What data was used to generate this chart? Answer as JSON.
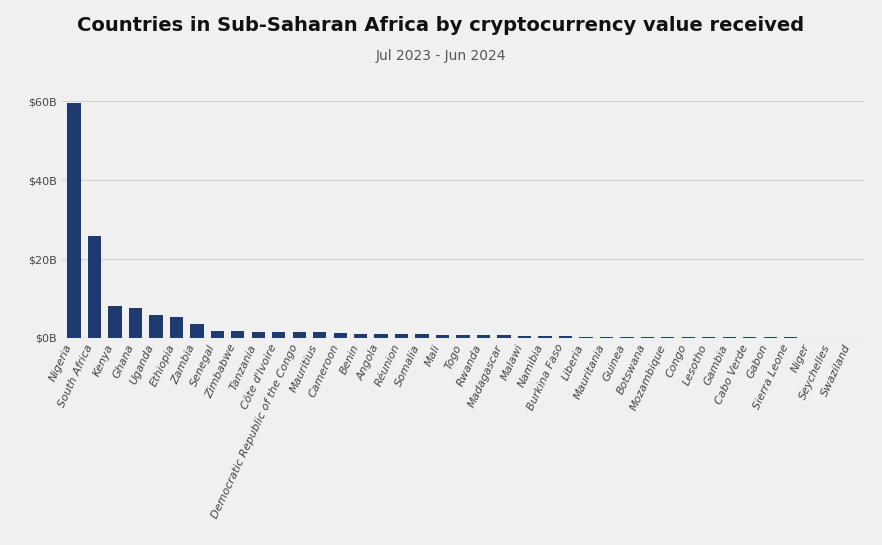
{
  "title": "Countries in Sub-Saharan Africa by cryptocurrency value received",
  "subtitle": "Jul 2023 - Jun 2024",
  "bar_color": "#1e3a6e",
  "background_color": "#f0f0f0",
  "categories": [
    "Nigeria",
    "South Africa",
    "Kenya",
    "Ghana",
    "Uganda",
    "Ethiopia",
    "Zambia",
    "Senegal",
    "Zimbabwe",
    "Tanzania",
    "Côte d'Ivoire",
    "Democratic Republic of the Congo",
    "Mauritius",
    "Cameroon",
    "Benin",
    "Angola",
    "Réunion",
    "Somalia",
    "Mali",
    "Togo",
    "Rwanda",
    "Madagascar",
    "Malawi",
    "Namibia",
    "Burkina Faso",
    "Liberia",
    "Mauritania",
    "Guinea",
    "Botswana",
    "Mozambique",
    "Congo",
    "Lesotho",
    "Gambia",
    "Cabo Verde",
    "Gabon",
    "Sierra Leone",
    "Niger",
    "Seychelles",
    "Swaziland"
  ],
  "values": [
    59.5,
    25.8,
    8.0,
    7.5,
    5.8,
    5.4,
    3.5,
    1.8,
    1.7,
    1.6,
    1.6,
    1.55,
    1.4,
    1.2,
    1.1,
    1.0,
    0.95,
    0.9,
    0.85,
    0.8,
    0.75,
    0.7,
    0.55,
    0.5,
    0.45,
    0.35,
    0.3,
    0.28,
    0.25,
    0.22,
    0.2,
    0.18,
    0.15,
    0.13,
    0.12,
    0.11,
    0.1,
    0.09,
    0.08
  ],
  "ylim": [
    0,
    65
  ],
  "yticks": [
    0,
    20,
    40,
    60
  ],
  "ytick_labels": [
    "$0B",
    "$20B",
    "$40B",
    "$60B"
  ],
  "title_fontsize": 14,
  "subtitle_fontsize": 10,
  "tick_label_fontsize": 8
}
